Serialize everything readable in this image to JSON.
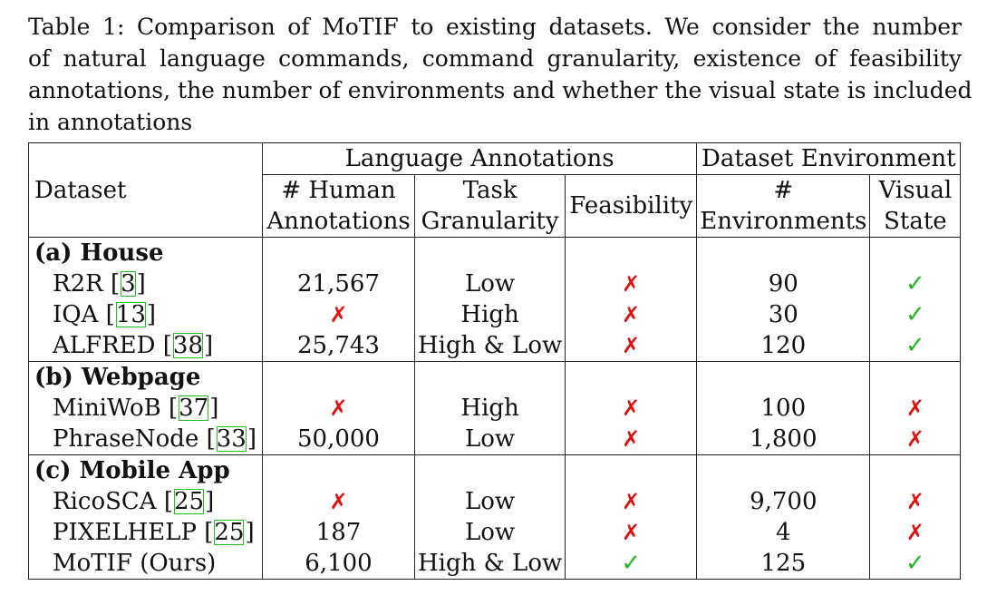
{
  "caption": {
    "lines": [
      "Table 1: Comparison of MoTIF to existing datasets. We consider the number",
      "of natural language commands, command granularity, existence of feasibility",
      "annotations, the number of environments and whether the visual state is included",
      "in annotations"
    ]
  },
  "table": {
    "group_headers": {
      "language": "Language Annotations",
      "environment": "Dataset Environment"
    },
    "col_headers": {
      "dataset": "Dataset",
      "human_1": "# Human",
      "human_2": "Annotations",
      "task_1": "Task",
      "task_2": "Granularity",
      "feasibility": "Feasibility",
      "env_1": "#",
      "env_2": "Environments",
      "visual_1": "Visual",
      "visual_2": "State"
    },
    "groups": [
      {
        "title": "(a) House",
        "rows": [
          {
            "name": "R2R",
            "ref": "3",
            "human": "21,567",
            "human_icon": "",
            "granularity": "Low",
            "feasibility": "cross-icon",
            "environments": "90",
            "visual": "check-icon"
          },
          {
            "name": "IQA",
            "ref": "13",
            "human": "",
            "human_icon": "cross-icon",
            "granularity": "High",
            "feasibility": "cross-icon",
            "environments": "30",
            "visual": "check-icon"
          },
          {
            "name": "ALFRED",
            "ref": "38",
            "human": "25,743",
            "human_icon": "",
            "granularity": "High & Low",
            "feasibility": "cross-icon",
            "environments": "120",
            "visual": "check-icon"
          }
        ]
      },
      {
        "title": "(b) Webpage",
        "rows": [
          {
            "name": "MiniWoB",
            "ref": "37",
            "human": "",
            "human_icon": "cross-icon",
            "granularity": "High",
            "feasibility": "cross-icon",
            "environments": "100",
            "visual": "cross-icon"
          },
          {
            "name": "PhraseNode",
            "ref": "33",
            "human": "50,000",
            "human_icon": "",
            "granularity": "Low",
            "feasibility": "cross-icon",
            "environments": "1,800",
            "visual": "cross-icon"
          }
        ]
      },
      {
        "title": "(c) Mobile App",
        "rows": [
          {
            "name": "RicoSCA",
            "ref": "25",
            "human": "",
            "human_icon": "cross-icon",
            "granularity": "Low",
            "feasibility": "cross-icon",
            "environments": "9,700",
            "visual": "cross-icon"
          },
          {
            "name": "PIXELHELP",
            "ref": "25",
            "human": "187",
            "human_icon": "",
            "granularity": "Low",
            "feasibility": "cross-icon",
            "environments": "4",
            "visual": "cross-icon"
          },
          {
            "name": "MoTIF (Ours)",
            "ref": "",
            "human": "6,100",
            "human_icon": "",
            "granularity": "High & Low",
            "feasibility": "check-icon",
            "environments": "125",
            "visual": "check-icon"
          }
        ]
      }
    ],
    "colors": {
      "cross": "#e01010",
      "check": "#22b822",
      "ref_box": "#22c022"
    }
  }
}
